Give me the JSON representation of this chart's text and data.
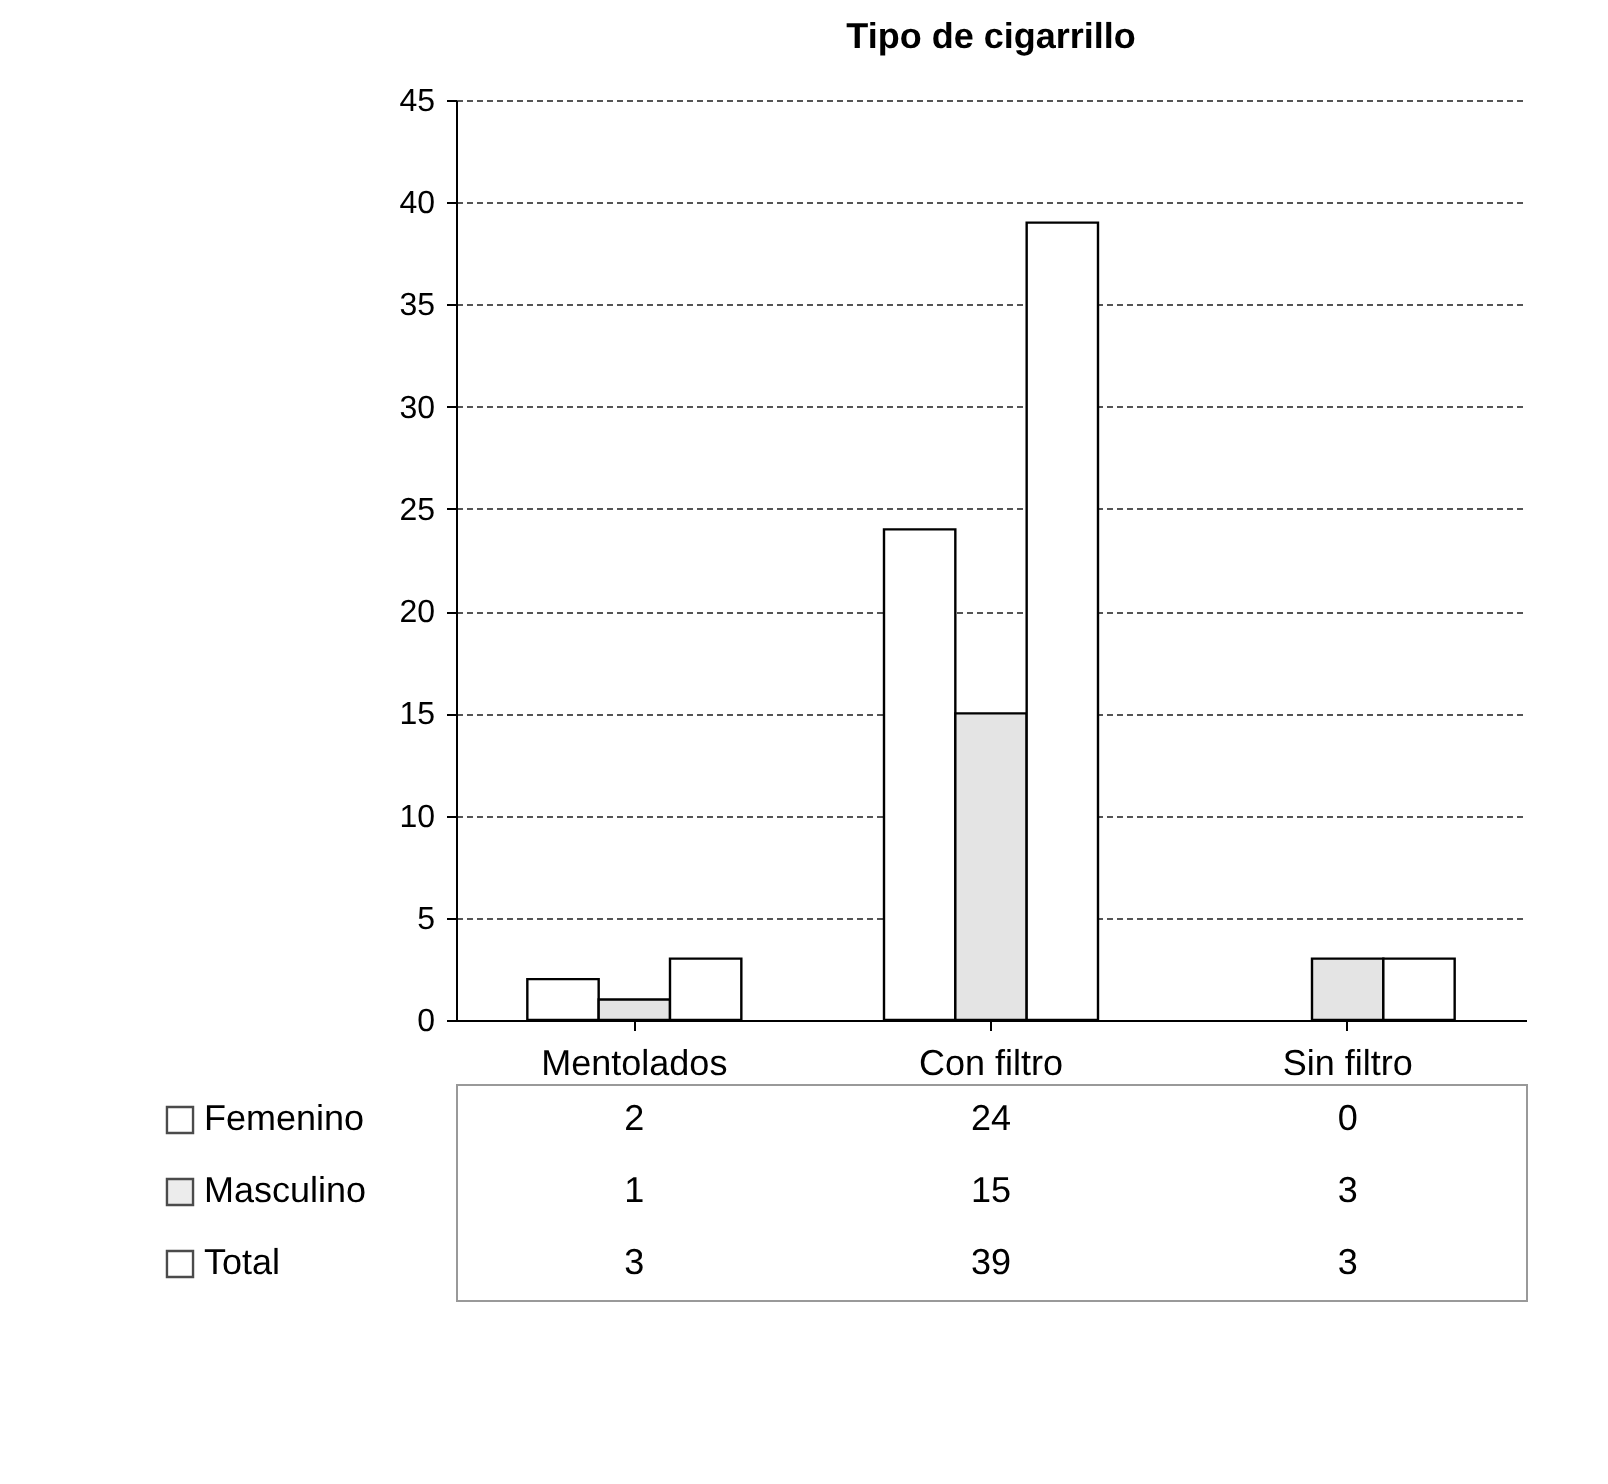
{
  "chart_data": {
    "type": "bar",
    "title": "Tipo de cigarrillo",
    "categories": [
      "Mentolados",
      "Con filtro",
      "Sin filtro"
    ],
    "series": [
      {
        "name": "Femenino",
        "color": "#ffffff",
        "values": [
          2,
          24,
          0
        ]
      },
      {
        "name": "Masculino",
        "color": "#e4e4e4",
        "values": [
          1,
          15,
          3
        ]
      },
      {
        "name": "Total",
        "color": "#ffffff",
        "values": [
          3,
          39,
          3
        ]
      }
    ],
    "ylim": [
      0,
      45
    ],
    "yticks": [
      0,
      5,
      10,
      15,
      20,
      25,
      30,
      35,
      40,
      45
    ],
    "grid": "y",
    "legend": "bottom",
    "data_labels": true
  }
}
